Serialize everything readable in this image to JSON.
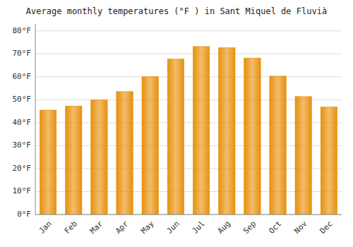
{
  "chart_data": {
    "type": "bar",
    "title": "Average monthly temperatures (°F ) in Sant Miquel de Fluvià",
    "categories": [
      "Jan",
      "Feb",
      "Mar",
      "Apr",
      "May",
      "Jun",
      "Jul",
      "Aug",
      "Sep",
      "Oct",
      "Nov",
      "Dec"
    ],
    "values": [
      45.5,
      47.3,
      50.0,
      53.6,
      60.1,
      67.8,
      73.2,
      72.7,
      68.2,
      60.3,
      51.4,
      46.9
    ],
    "color": "#E8900A",
    "ylim": [
      0,
      83
    ],
    "yticks": [
      {
        "value": 0,
        "label": "0°F"
      },
      {
        "value": 10,
        "label": "10°F"
      },
      {
        "value": 20,
        "label": "20°F"
      },
      {
        "value": 30,
        "label": "30°F"
      },
      {
        "value": 40,
        "label": "40°F"
      },
      {
        "value": 50,
        "label": "50°F"
      },
      {
        "value": 60,
        "label": "60°F"
      },
      {
        "value": 70,
        "label": "70°F"
      },
      {
        "value": 80,
        "label": "80°F"
      }
    ],
    "grid": true
  }
}
